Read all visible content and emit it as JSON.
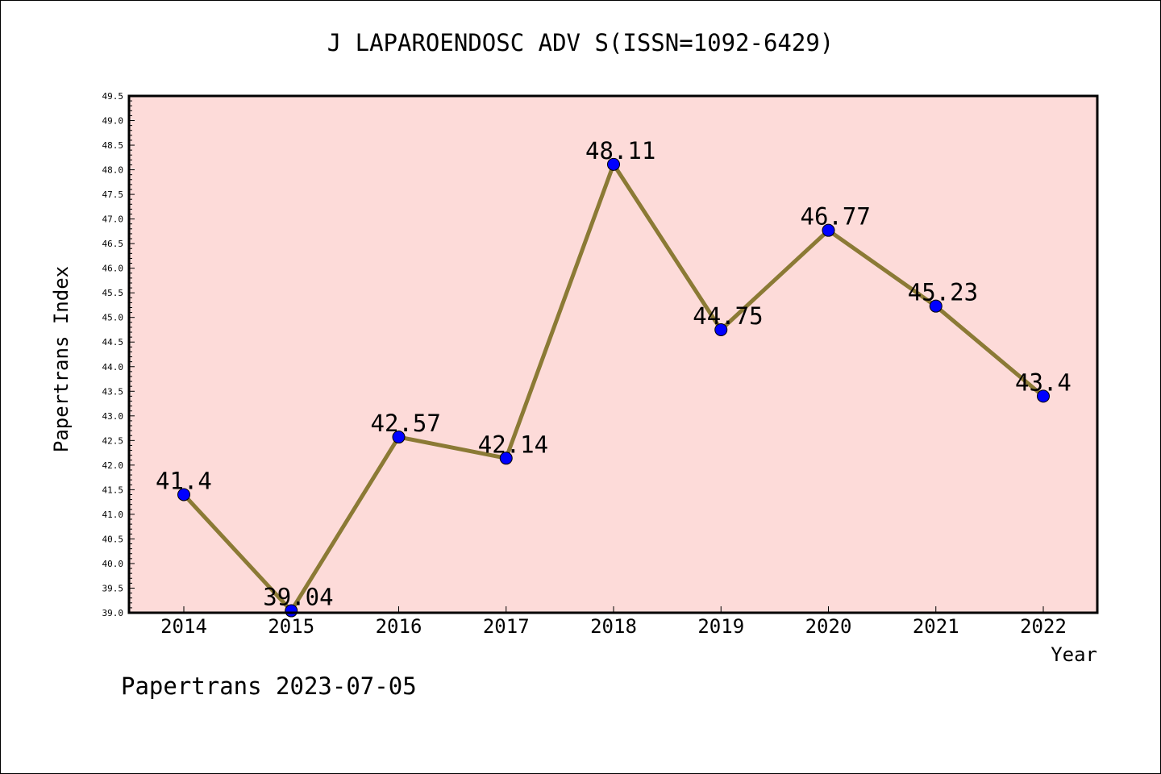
{
  "chart_data": {
    "type": "line",
    "title": "J LAPAROENDOSC ADV S(ISSN=1092-6429)",
    "xlabel": "Year",
    "ylabel": "Papertrans Index",
    "categories": [
      "2014",
      "2015",
      "2016",
      "2017",
      "2018",
      "2019",
      "2020",
      "2021",
      "2022"
    ],
    "series": [
      {
        "values": [
          41.4,
          39.04,
          42.57,
          42.14,
          48.11,
          44.75,
          46.77,
          45.23,
          43.4
        ]
      }
    ],
    "data_labels": [
      "41.4",
      "39.04",
      "42.57",
      "42.14",
      "48.11",
      "44.75",
      "46.77",
      "45.23",
      "43.4"
    ],
    "ylim": [
      39.0,
      49.5
    ],
    "ytick_step": 0.5,
    "grid": false,
    "legend": "none",
    "colors": {
      "plot_background": "#fddbd9",
      "line": "#8b7a35",
      "marker": "#0000ff"
    }
  },
  "footer": "Papertrans 2023-07-05"
}
